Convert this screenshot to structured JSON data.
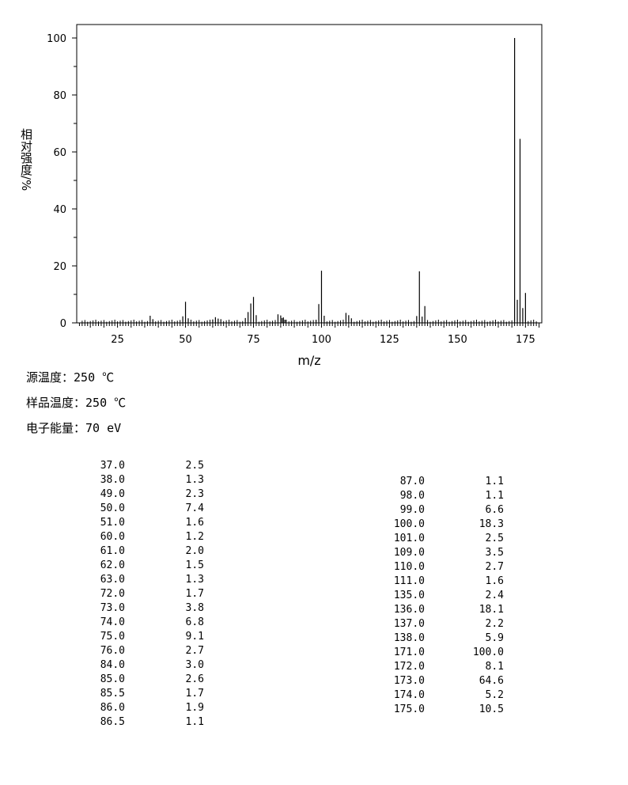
{
  "chart_data": {
    "type": "bar",
    "ylabel": "相对强度/%",
    "xlabel": "m/z",
    "xlim": [
      10,
      181
    ],
    "ylim": [
      0,
      105
    ],
    "x_ticks": [
      25,
      50,
      75,
      100,
      125,
      150,
      175
    ],
    "y_ticks": [
      0,
      20,
      40,
      60,
      80,
      100
    ],
    "grid": false,
    "x": [
      37.0,
      38.0,
      49.0,
      50.0,
      51.0,
      60.0,
      61.0,
      62.0,
      63.0,
      72.0,
      73.0,
      74.0,
      75.0,
      76.0,
      84.0,
      85.0,
      85.5,
      86.0,
      86.5,
      87.0,
      98.0,
      99.0,
      100.0,
      101.0,
      109.0,
      110.0,
      111.0,
      135.0,
      136.0,
      137.0,
      138.0,
      171.0,
      172.0,
      173.0,
      174.0,
      175.0
    ],
    "values": [
      2.5,
      1.3,
      2.3,
      7.4,
      1.6,
      1.2,
      2.0,
      1.5,
      1.3,
      1.7,
      3.8,
      6.8,
      9.1,
      2.7,
      3.0,
      2.6,
      1.7,
      1.9,
      1.1,
      1.1,
      1.1,
      6.6,
      18.3,
      2.5,
      3.5,
      2.7,
      1.6,
      2.4,
      18.1,
      2.2,
      5.9,
      100.0,
      8.1,
      64.6,
      5.2,
      10.5
    ]
  },
  "info": [
    {
      "label": "源温度：",
      "value": "250 ℃"
    },
    {
      "label": "样品温度：",
      "value": "250 ℃"
    },
    {
      "label": "电子能量：",
      "value": "70 eV"
    }
  ],
  "peak_table": {
    "left": [
      [
        "37.0",
        "2.5"
      ],
      [
        "38.0",
        "1.3"
      ],
      [
        "49.0",
        "2.3"
      ],
      [
        "50.0",
        "7.4"
      ],
      [
        "51.0",
        "1.6"
      ],
      [
        "60.0",
        "1.2"
      ],
      [
        "61.0",
        "2.0"
      ],
      [
        "62.0",
        "1.5"
      ],
      [
        "63.0",
        "1.3"
      ],
      [
        "72.0",
        "1.7"
      ],
      [
        "73.0",
        "3.8"
      ],
      [
        "74.0",
        "6.8"
      ],
      [
        "75.0",
        "9.1"
      ],
      [
        "76.0",
        "2.7"
      ],
      [
        "84.0",
        "3.0"
      ],
      [
        "85.0",
        "2.6"
      ],
      [
        "85.5",
        "1.7"
      ],
      [
        "86.0",
        "1.9"
      ],
      [
        "86.5",
        "1.1"
      ]
    ],
    "right": [
      [
        "87.0",
        "1.1"
      ],
      [
        "98.0",
        "1.1"
      ],
      [
        "99.0",
        "6.6"
      ],
      [
        "100.0",
        "18.3"
      ],
      [
        "101.0",
        "2.5"
      ],
      [
        "109.0",
        "3.5"
      ],
      [
        "110.0",
        "2.7"
      ],
      [
        "111.0",
        "1.6"
      ],
      [
        "135.0",
        "2.4"
      ],
      [
        "136.0",
        "18.1"
      ],
      [
        "137.0",
        "2.2"
      ],
      [
        "138.0",
        "5.9"
      ],
      [
        "171.0",
        "100.0"
      ],
      [
        "172.0",
        "8.1"
      ],
      [
        "173.0",
        "64.6"
      ],
      [
        "174.0",
        "5.2"
      ],
      [
        "175.0",
        "10.5"
      ]
    ]
  }
}
